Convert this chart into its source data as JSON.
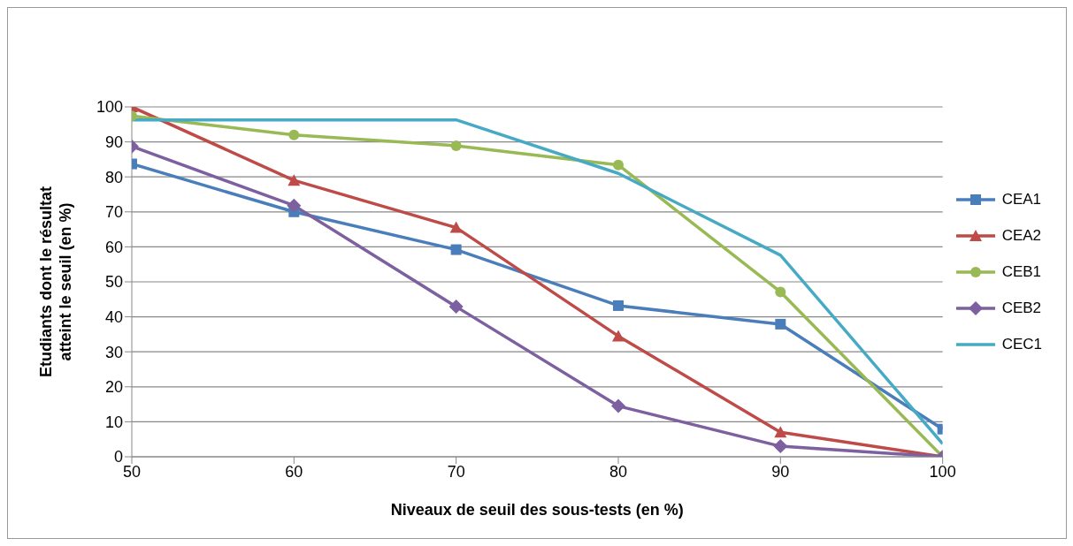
{
  "chart_data": {
    "type": "line",
    "xlabel": "Niveaux de seuil des sous-tests  (en %)",
    "ylabel": "Etudiants dont le résultat atteint le seuil (en %)",
    "x": [
      50,
      60,
      70,
      80,
      90,
      100
    ],
    "xlim": [
      50,
      100
    ],
    "xticks": [
      50,
      60,
      70,
      80,
      90,
      100
    ],
    "ylim": [
      0,
      100
    ],
    "yticks": [
      0,
      10,
      20,
      30,
      40,
      50,
      60,
      70,
      80,
      90,
      100
    ],
    "grid": "y",
    "legend": "right",
    "series": [
      {
        "name": "CEA1",
        "color": "#4a7ebb",
        "marker": "square",
        "values": [
          83.7,
          70,
          59.2,
          43.2,
          37.9,
          7.9
        ]
      },
      {
        "name": "CEA2",
        "color": "#be4b48",
        "marker": "triangle",
        "values": [
          100,
          79,
          65.5,
          34.5,
          7,
          0
        ]
      },
      {
        "name": "CEB1",
        "color": "#98b954",
        "marker": "circle",
        "values": [
          97.4,
          92,
          88.9,
          83.4,
          47.1,
          0
        ]
      },
      {
        "name": "CEB2",
        "color": "#7d60a0",
        "marker": "diamond",
        "values": [
          88.7,
          71.8,
          42.9,
          14.5,
          3,
          0
        ]
      },
      {
        "name": "CEC1",
        "color": "#46aac5",
        "marker": "none",
        "values": [
          96.3,
          96.3,
          96.3,
          81,
          57.6,
          3.7
        ]
      }
    ]
  }
}
